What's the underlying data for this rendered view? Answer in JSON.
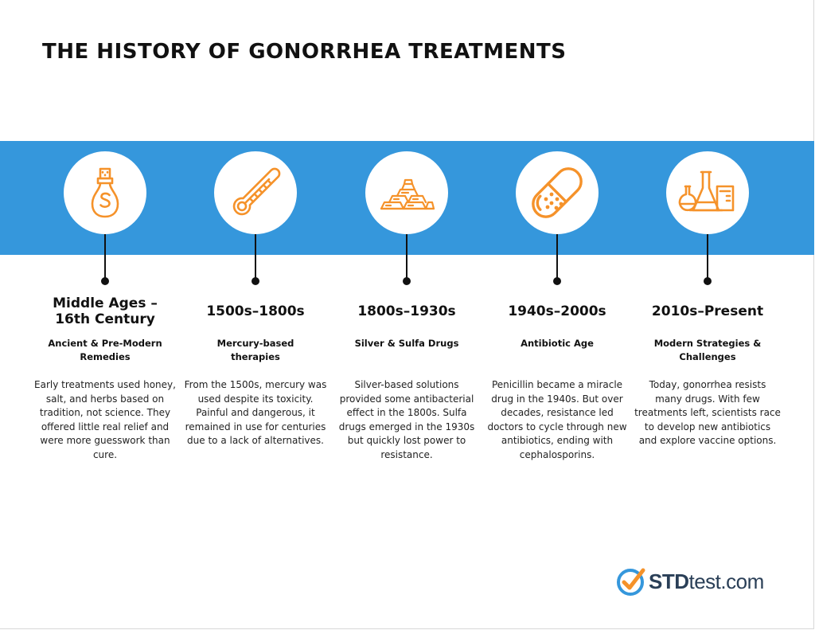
{
  "title": "THE HISTORY OF GONORRHEA TREATMENTS",
  "colors": {
    "band": "#3597dc",
    "icon_accent": "#f5922a",
    "text": "#111111"
  },
  "timeline": [
    {
      "icon": "salt-shaker-icon",
      "era": "Middle Ages – 16th Century",
      "subtitle": "Ancient & Pre-Modern Remedies",
      "description": "Early treatments used honey, salt, and herbs based on tradition, not science. They offered little real relief and were more guesswork than cure."
    },
    {
      "icon": "thermometer-icon",
      "era": "1500s–1800s",
      "subtitle": "Mercury-based therapies",
      "description": "From the 1500s, mercury was used despite its toxicity. Painful and dangerous, it remained in use for centuries due to a lack of alternatives."
    },
    {
      "icon": "silver-bars-icon",
      "era": "1800s–1930s",
      "subtitle": "Silver & Sulfa Drugs",
      "description": "Silver-based solutions provided some antibacterial effect in the 1800s. Sulfa drugs emerged in the 1930s but quickly lost power to resistance."
    },
    {
      "icon": "pill-capsule-icon",
      "era": "1940s–2000s",
      "subtitle": "Antibiotic Age",
      "description": "Penicillin became a miracle drug in the 1940s. But over decades, resistance led doctors to cycle through new antibiotics, ending with cephalosporins."
    },
    {
      "icon": "lab-flasks-icon",
      "era": "2010s–Present",
      "subtitle": "Modern Strategies & Challenges",
      "description": "Today, gonorrhea resists many drugs. With few treatments left, scientists race to develop new antibiotics and explore vaccine options."
    }
  ],
  "logo": {
    "bold": "STD",
    "rest": "test.com",
    "icon": "check-circle-icon"
  }
}
